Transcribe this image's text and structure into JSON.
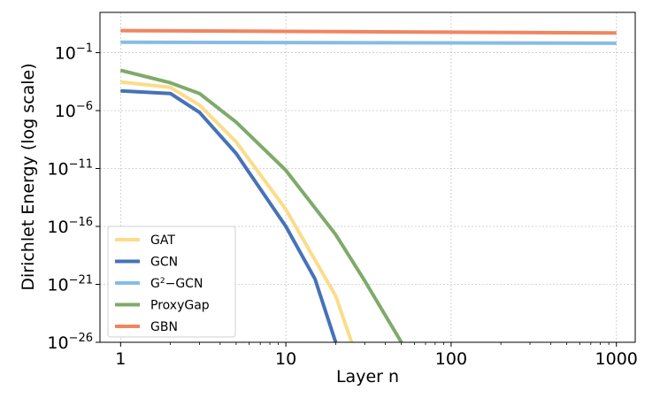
{
  "chart_data": {
    "type": "line",
    "xlabel": "Layer n",
    "ylabel": "Dirichlet Energy (log scale)",
    "xscale": "log",
    "yscale": "log",
    "xlim": [
      0.75,
      1300
    ],
    "ylim": [
      1e-26,
      300
    ],
    "x_ticks": [
      1,
      10,
      100,
      1000
    ],
    "x_tick_labels": [
      "1",
      "10",
      "100",
      "1000"
    ],
    "y_ticks": [
      1e-26,
      1e-21,
      1e-16,
      1e-11,
      1e-06,
      0.1
    ],
    "y_tick_labels": [
      {
        "base": "10",
        "exp": "−26"
      },
      {
        "base": "10",
        "exp": "−21"
      },
      {
        "base": "10",
        "exp": "−16"
      },
      {
        "base": "10",
        "exp": "−11"
      },
      {
        "base": "10",
        "exp": "−6"
      },
      {
        "base": "10",
        "exp": "−1"
      }
    ],
    "grid": true,
    "legend_position": "lower-left",
    "series": [
      {
        "name": "GAT",
        "color": "#fbdc8a",
        "x": [
          1,
          2,
          3,
          5,
          10,
          20,
          25
        ],
        "y": [
          0.0003,
          0.0001,
          3e-06,
          2e-09,
          3e-15,
          1e-22,
          1e-26
        ]
      },
      {
        "name": "GCN",
        "color": "#4672b8",
        "x": [
          1,
          2,
          3,
          5,
          10,
          15,
          20
        ],
        "y": [
          5e-05,
          3e-05,
          7e-07,
          2e-10,
          1e-16,
          3e-21,
          1e-26
        ]
      },
      {
        "name": "G²−GCN",
        "color": "#87bce5",
        "x": [
          1,
          1000
        ],
        "y": [
          0.8,
          0.65
        ]
      },
      {
        "name": "ProxyGap",
        "color": "#7faa6a",
        "x": [
          1,
          2,
          3,
          5,
          10,
          20,
          30,
          50
        ],
        "y": [
          0.003,
          0.00025,
          3e-05,
          1e-07,
          7e-12,
          2e-17,
          2e-21,
          1e-26
        ]
      },
      {
        "name": "GBN",
        "color": "#f08560",
        "x": [
          1,
          1000
        ],
        "y": [
          8,
          5
        ]
      }
    ],
    "legend_name_parts": [
      [
        {
          "t": "GAT",
          "sup": false
        }
      ],
      [
        {
          "t": "GCN",
          "sup": false
        }
      ],
      [
        {
          "t": "G",
          "sup": false
        },
        {
          "t": "2",
          "sup": true
        },
        {
          "t": "−GCN",
          "sup": false
        }
      ],
      [
        {
          "t": "ProxyGap",
          "sup": false
        }
      ],
      [
        {
          "t": "GBN",
          "sup": false
        }
      ]
    ]
  }
}
